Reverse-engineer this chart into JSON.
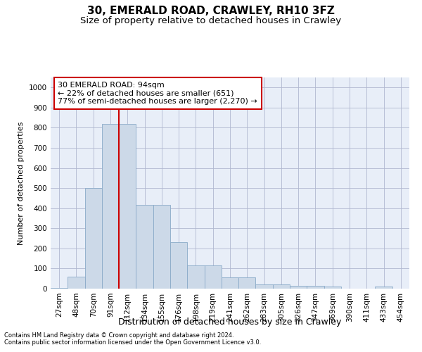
{
  "title": "30, EMERALD ROAD, CRAWLEY, RH10 3FZ",
  "subtitle": "Size of property relative to detached houses in Crawley",
  "xlabel": "Distribution of detached houses by size in Crawley",
  "ylabel": "Number of detached properties",
  "footnote1": "Contains HM Land Registry data © Crown copyright and database right 2024.",
  "footnote2": "Contains public sector information licensed under the Open Government Licence v3.0.",
  "bar_labels": [
    "27sqm",
    "48sqm",
    "70sqm",
    "91sqm",
    "112sqm",
    "134sqm",
    "155sqm",
    "176sqm",
    "198sqm",
    "219sqm",
    "241sqm",
    "262sqm",
    "283sqm",
    "305sqm",
    "326sqm",
    "347sqm",
    "369sqm",
    "390sqm",
    "411sqm",
    "433sqm",
    "454sqm"
  ],
  "bar_values": [
    5,
    60,
    500,
    820,
    820,
    415,
    415,
    230,
    115,
    115,
    55,
    55,
    20,
    20,
    15,
    15,
    10,
    0,
    0,
    10,
    0
  ],
  "bar_color": "#ccd9e8",
  "bar_edge_color": "#8aaac8",
  "property_line_x": 3.5,
  "property_line_color": "#cc0000",
  "annotation_text": "30 EMERALD ROAD: 94sqm\n← 22% of detached houses are smaller (651)\n77% of semi-detached houses are larger (2,270) →",
  "annotation_box_color": "#ffffff",
  "annotation_box_edge": "#cc0000",
  "ylim": [
    0,
    1050
  ],
  "yticks": [
    0,
    100,
    200,
    300,
    400,
    500,
    600,
    700,
    800,
    900,
    1000
  ],
  "grid_color": "#b0b8d0",
  "bg_color": "#e8eef8",
  "title_fontsize": 11,
  "subtitle_fontsize": 9.5,
  "tick_fontsize": 7.5,
  "ylabel_fontsize": 8,
  "xlabel_fontsize": 9,
  "annotation_fontsize": 8,
  "footnote_fontsize": 6
}
